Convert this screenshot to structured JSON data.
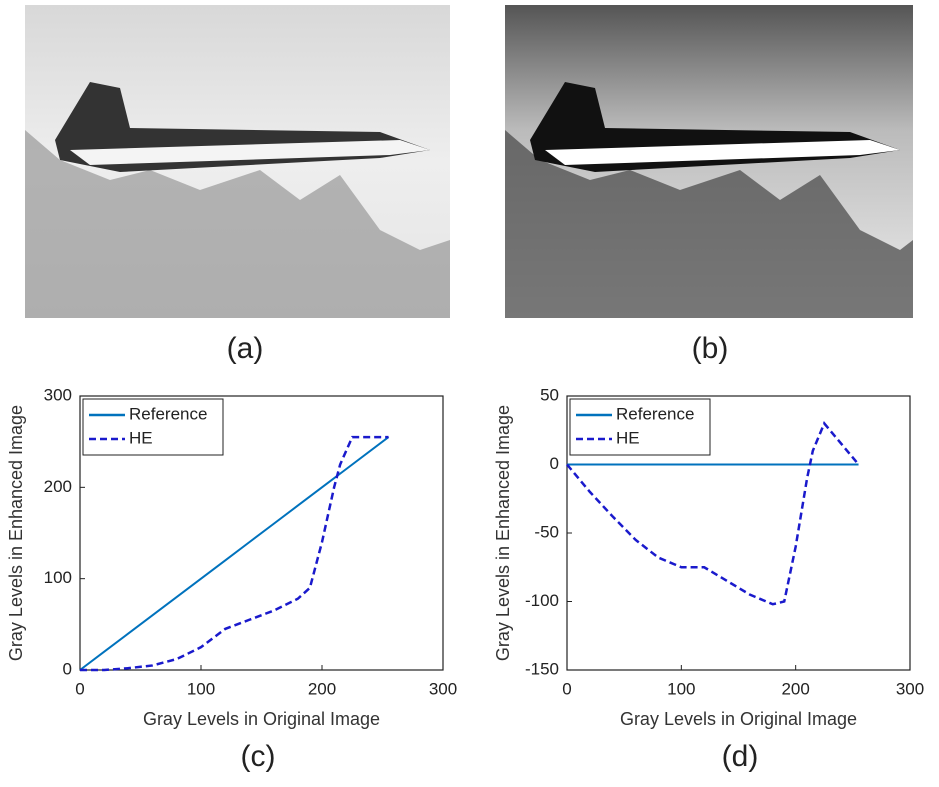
{
  "panels": {
    "captions": [
      "(a)",
      "(b)",
      "(c)",
      "(d)"
    ]
  },
  "chart_data": [
    {
      "type": "line",
      "xlabel": "Gray Levels in Original Image",
      "ylabel": "Gray Levels in Enhanced Image",
      "x": [
        0,
        20,
        40,
        60,
        80,
        100,
        120,
        140,
        160,
        180,
        190,
        200,
        210,
        215,
        225,
        255
      ],
      "series": [
        {
          "name": "Reference",
          "color": "#0072bd",
          "dash": false,
          "values": [
            0,
            20,
            40,
            60,
            80,
            100,
            120,
            140,
            160,
            180,
            190,
            200,
            210,
            215,
            225,
            255
          ]
        },
        {
          "name": "HE",
          "color": "#1a1acc",
          "dash": true,
          "values": [
            0,
            0,
            2,
            5,
            12,
            25,
            45,
            55,
            65,
            78,
            90,
            140,
            200,
            225,
            255,
            255
          ]
        }
      ],
      "xlim": [
        0,
        300
      ],
      "ylim": [
        0,
        300
      ],
      "xticks": [
        0,
        100,
        200,
        300
      ],
      "yticks": [
        0,
        100,
        200,
        300
      ],
      "legend": "upper left"
    },
    {
      "type": "line",
      "xlabel": "Gray Levels in Original Image",
      "ylabel": "Gray Levels in Enhanced Image",
      "x": [
        0,
        20,
        40,
        60,
        80,
        100,
        120,
        140,
        160,
        180,
        190,
        200,
        210,
        215,
        225,
        255
      ],
      "series": [
        {
          "name": "Reference",
          "color": "#0072bd",
          "dash": false,
          "values": [
            0,
            0,
            0,
            0,
            0,
            0,
            0,
            0,
            0,
            0,
            0,
            0,
            0,
            0,
            0,
            0
          ]
        },
        {
          "name": "HE",
          "color": "#1a1acc",
          "dash": true,
          "values": [
            0,
            -20,
            -38,
            -55,
            -68,
            -75,
            -75,
            -85,
            -95,
            -102,
            -100,
            -60,
            -10,
            10,
            30,
            0
          ]
        }
      ],
      "xlim": [
        0,
        300
      ],
      "ylim": [
        -150,
        50
      ],
      "xticks": [
        0,
        100,
        200,
        300
      ],
      "yticks": [
        -150,
        -100,
        -50,
        0,
        50
      ],
      "legend": "upper left"
    }
  ]
}
